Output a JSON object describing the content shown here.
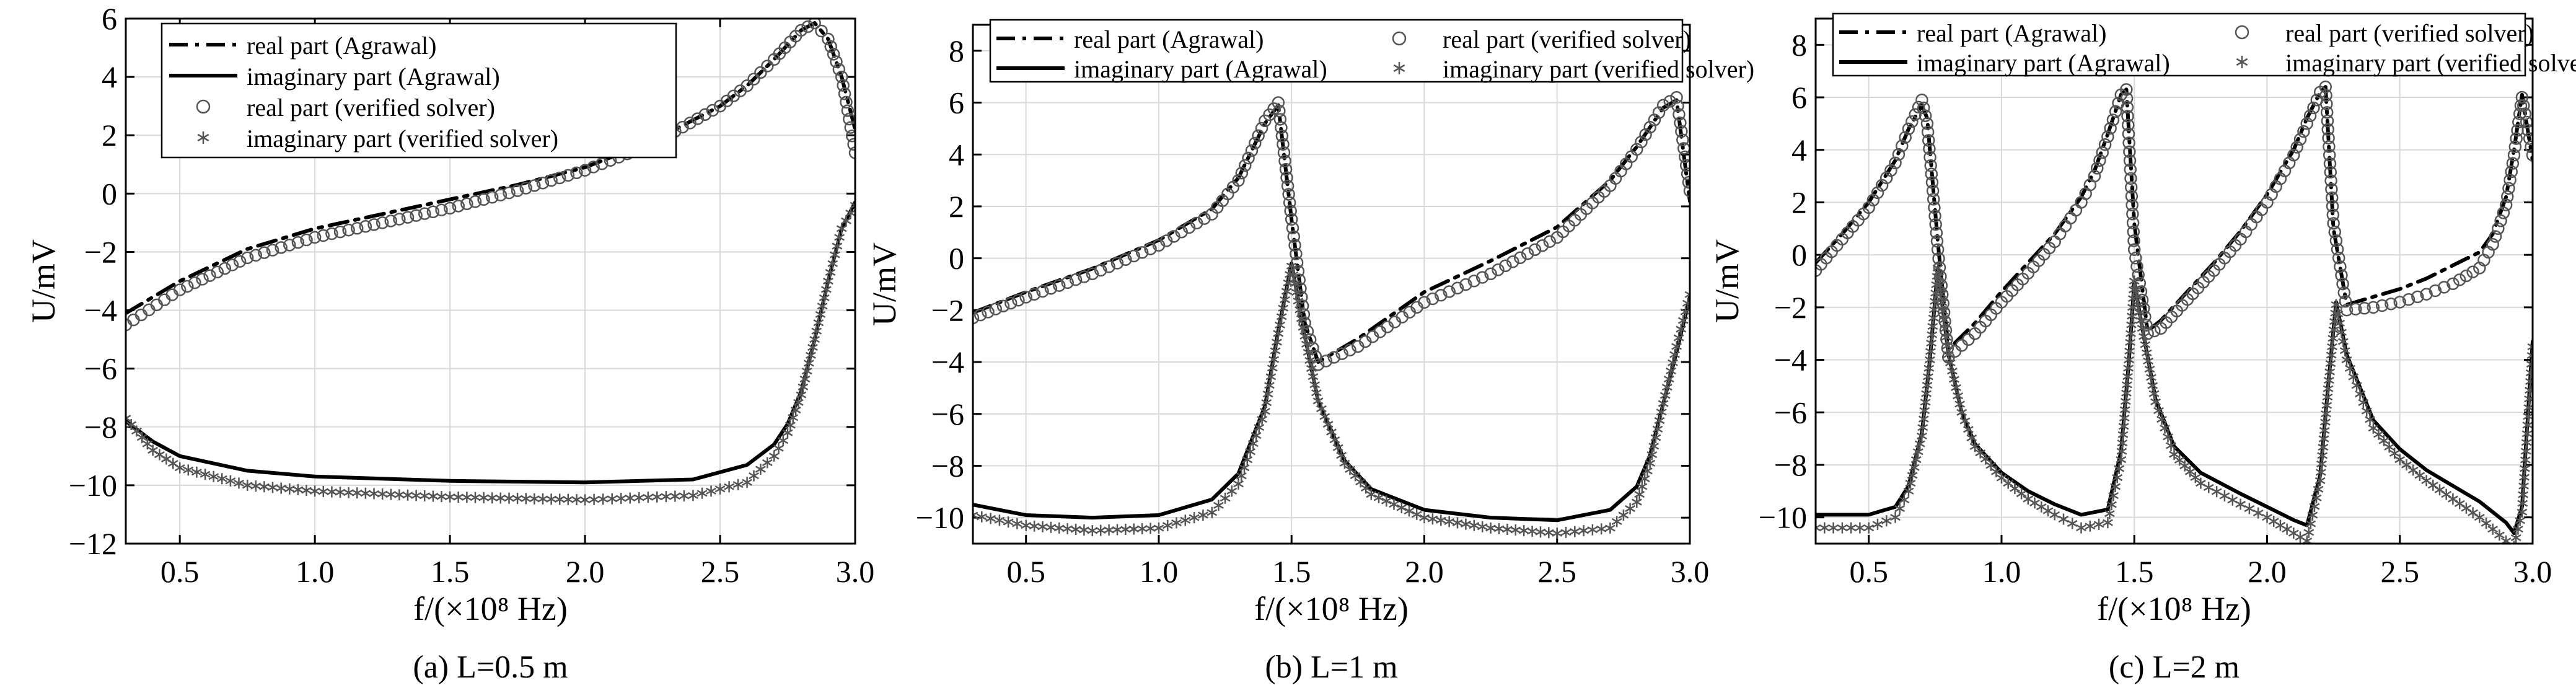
{
  "chart_data": [
    {
      "type": "line",
      "caption": "(a) L=0.5 m",
      "xlabel": "f/(×10⁸ Hz)",
      "ylabel": "U/mV",
      "xlim": [
        0.3,
        3.0
      ],
      "ylim": [
        -12,
        6
      ],
      "xticks": [
        "0.5",
        "1.0",
        "1.5",
        "2.0",
        "2.5",
        "3.0"
      ],
      "yticks": [
        "-12",
        "-10",
        "-8",
        "-6",
        "-4",
        "-2",
        "0",
        "2",
        "4",
        "6"
      ],
      "grid": true,
      "legend_layout": "one-column, top-left",
      "series": [
        {
          "name": "real part (Agrawal)",
          "style": "dashdot",
          "x": [
            0.3,
            0.5,
            0.75,
            1.0,
            1.25,
            1.5,
            1.75,
            2.0,
            2.25,
            2.5,
            2.6,
            2.7,
            2.8,
            2.85,
            2.9,
            2.95,
            3.0
          ],
          "y": [
            -4.1,
            -3.0,
            -1.9,
            -1.2,
            -0.7,
            -0.2,
            0.3,
            0.9,
            1.8,
            3.0,
            3.7,
            4.6,
            5.6,
            5.85,
            5.3,
            4.0,
            2.2
          ]
        },
        {
          "name": "imaginary part (Agrawal)",
          "style": "solid",
          "x": [
            0.3,
            0.4,
            0.5,
            0.75,
            1.0,
            1.5,
            2.0,
            2.4,
            2.6,
            2.7,
            2.75,
            2.8,
            2.85,
            2.9,
            2.95,
            3.0
          ],
          "y": [
            -7.8,
            -8.5,
            -9.0,
            -9.5,
            -9.7,
            -9.85,
            -9.9,
            -9.8,
            -9.3,
            -8.6,
            -7.9,
            -6.8,
            -5.0,
            -3.0,
            -1.2,
            -0.3
          ]
        },
        {
          "name": "real part (verified solver)",
          "style": "circle",
          "x": [
            0.3,
            0.5,
            0.75,
            1.0,
            1.25,
            1.5,
            1.75,
            2.0,
            2.25,
            2.5,
            2.6,
            2.7,
            2.8,
            2.85,
            2.9,
            2.95,
            3.0
          ],
          "y": [
            -4.5,
            -3.3,
            -2.2,
            -1.5,
            -1.0,
            -0.5,
            0.1,
            0.8,
            1.7,
            3.0,
            3.7,
            4.6,
            5.6,
            5.85,
            5.3,
            4.0,
            1.4
          ]
        },
        {
          "name": "imaginary part (verified solver)",
          "style": "star",
          "x": [
            0.3,
            0.4,
            0.5,
            0.75,
            1.0,
            1.5,
            2.0,
            2.4,
            2.6,
            2.7,
            2.75,
            2.8,
            2.85,
            2.9,
            2.95,
            3.0
          ],
          "y": [
            -7.7,
            -8.8,
            -9.4,
            -10.0,
            -10.2,
            -10.4,
            -10.5,
            -10.35,
            -9.9,
            -9.0,
            -8.2,
            -6.9,
            -5.0,
            -3.0,
            -1.2,
            -0.4
          ]
        }
      ]
    },
    {
      "type": "line",
      "caption": "(b) L=1 m",
      "xlabel": "f/(×10⁸ Hz)",
      "ylabel": "U/mV",
      "xlim": [
        0.3,
        3.0
      ],
      "ylim": [
        -11,
        9
      ],
      "xticks": [
        "0.5",
        "1.0",
        "1.5",
        "2.0",
        "2.5",
        "3.0"
      ],
      "yticks": [
        "-10",
        "-8",
        "-6",
        "-4",
        "-2",
        "0",
        "2",
        "4",
        "6",
        "8"
      ],
      "grid": true,
      "legend_layout": "two-column, top",
      "series": [
        {
          "name": "real part (Agrawal)",
          "style": "dashdot",
          "x": [
            0.3,
            0.5,
            0.75,
            1.0,
            1.2,
            1.3,
            1.4,
            1.45,
            1.5,
            1.55,
            1.6,
            1.75,
            2.0,
            2.25,
            2.5,
            2.7,
            2.8,
            2.9,
            2.95,
            3.0
          ],
          "y": [
            -2.1,
            -1.3,
            -0.4,
            0.7,
            1.9,
            3.1,
            5.2,
            5.9,
            1.5,
            -2.5,
            -4.0,
            -3.1,
            -1.3,
            -0.1,
            1.2,
            3.0,
            4.3,
            5.8,
            6.1,
            2.2
          ]
        },
        {
          "name": "imaginary part (Agrawal)",
          "style": "solid",
          "x": [
            0.3,
            0.5,
            0.75,
            1.0,
            1.2,
            1.3,
            1.4,
            1.45,
            1.5,
            1.55,
            1.6,
            1.7,
            1.8,
            2.0,
            2.25,
            2.5,
            2.7,
            2.8,
            2.85,
            2.9,
            2.95,
            3.0
          ],
          "y": [
            -9.5,
            -9.9,
            -10.0,
            -9.9,
            -9.3,
            -8.3,
            -5.7,
            -2.8,
            -0.2,
            -3.0,
            -5.5,
            -7.8,
            -8.9,
            -9.7,
            -10.0,
            -10.1,
            -9.7,
            -8.8,
            -7.6,
            -5.6,
            -3.6,
            -1.5
          ]
        },
        {
          "name": "real part (verified solver)",
          "style": "circle",
          "x": [
            0.3,
            0.5,
            0.75,
            1.0,
            1.2,
            1.3,
            1.4,
            1.45,
            1.5,
            1.55,
            1.6,
            1.75,
            2.0,
            2.25,
            2.5,
            2.7,
            2.8,
            2.9,
            2.95,
            3.0
          ],
          "y": [
            -2.3,
            -1.5,
            -0.6,
            0.5,
            1.7,
            3.0,
            5.3,
            6.0,
            1.5,
            -2.5,
            -4.1,
            -3.4,
            -1.7,
            -0.6,
            0.8,
            2.8,
            4.2,
            5.9,
            6.2,
            2.6
          ]
        },
        {
          "name": "imaginary part (verified solver)",
          "style": "star",
          "x": [
            0.3,
            0.5,
            0.75,
            1.0,
            1.2,
            1.3,
            1.4,
            1.45,
            1.5,
            1.55,
            1.6,
            1.7,
            1.8,
            2.0,
            2.25,
            2.5,
            2.7,
            2.8,
            2.85,
            2.9,
            2.95,
            3.0
          ],
          "y": [
            -9.9,
            -10.3,
            -10.5,
            -10.4,
            -9.8,
            -8.7,
            -5.9,
            -2.9,
            -0.3,
            -3.0,
            -5.5,
            -7.9,
            -9.1,
            -10.0,
            -10.4,
            -10.6,
            -10.4,
            -9.4,
            -7.9,
            -5.6,
            -3.4,
            -1.4
          ]
        }
      ]
    },
    {
      "type": "line",
      "caption": "(c) L=2 m",
      "xlabel": "f/(×10⁸ Hz)",
      "ylabel": "U/mV",
      "xlim": [
        0.3,
        3.0
      ],
      "ylim": [
        -11,
        9
      ],
      "xticks": [
        "0.5",
        "1.0",
        "1.5",
        "2.0",
        "2.5",
        "3.0"
      ],
      "yticks": [
        "-10",
        "-8",
        "-6",
        "-4",
        "-2",
        "0",
        "2",
        "4",
        "6",
        "8"
      ],
      "grid": true,
      "legend_layout": "two-column, top",
      "series": [
        {
          "name": "real part (Agrawal)",
          "style": "dashdot",
          "x": [
            0.3,
            0.4,
            0.5,
            0.6,
            0.65,
            0.7,
            0.72,
            0.76,
            0.8,
            0.9,
            1.0,
            1.1,
            1.2,
            1.3,
            1.35,
            1.4,
            1.45,
            1.47,
            1.5,
            1.55,
            1.6,
            1.7,
            1.8,
            1.9,
            2.0,
            2.1,
            2.15,
            2.2,
            2.22,
            2.25,
            2.3,
            2.4,
            2.5,
            2.6,
            2.7,
            2.8,
            2.85,
            2.9,
            2.93,
            2.96,
            3.0
          ],
          "y": [
            -0.3,
            0.8,
            2.0,
            3.6,
            4.8,
            5.7,
            5.2,
            0.5,
            -3.6,
            -2.6,
            -1.4,
            -0.3,
            0.8,
            2.2,
            3.2,
            4.6,
            6.1,
            6.3,
            1.2,
            -2.9,
            -2.5,
            -1.4,
            -0.3,
            0.9,
            2.3,
            4.0,
            5.2,
            6.2,
            6.4,
            1.0,
            -1.9,
            -1.6,
            -1.3,
            -0.9,
            -0.4,
            0.1,
            0.8,
            2.2,
            4.0,
            6.1,
            3.6
          ]
        },
        {
          "name": "imaginary part (Agrawal)",
          "style": "solid",
          "x": [
            0.3,
            0.5,
            0.6,
            0.65,
            0.7,
            0.73,
            0.76,
            0.8,
            0.85,
            0.9,
            1.0,
            1.1,
            1.2,
            1.3,
            1.4,
            1.45,
            1.48,
            1.5,
            1.53,
            1.58,
            1.65,
            1.75,
            1.9,
            2.0,
            2.1,
            2.15,
            2.2,
            2.23,
            2.26,
            2.3,
            2.4,
            2.5,
            2.6,
            2.7,
            2.8,
            2.9,
            2.93,
            2.96,
            3.0
          ],
          "y": [
            -9.9,
            -9.9,
            -9.6,
            -8.8,
            -6.8,
            -4.0,
            -0.5,
            -3.8,
            -6.0,
            -7.2,
            -8.3,
            -9.0,
            -9.5,
            -9.9,
            -9.7,
            -7.5,
            -4.0,
            -1.0,
            -2.8,
            -5.5,
            -7.3,
            -8.3,
            -9.1,
            -9.6,
            -10.1,
            -10.3,
            -8.4,
            -5.0,
            -1.8,
            -3.8,
            -6.3,
            -7.4,
            -8.2,
            -8.8,
            -9.4,
            -10.2,
            -10.6,
            -9.6,
            -3.3
          ]
        },
        {
          "name": "real part (verified solver)",
          "style": "circle",
          "x": [
            0.3,
            0.4,
            0.5,
            0.6,
            0.65,
            0.7,
            0.72,
            0.76,
            0.8,
            0.9,
            1.0,
            1.1,
            1.2,
            1.3,
            1.35,
            1.4,
            1.45,
            1.47,
            1.5,
            1.55,
            1.6,
            1.7,
            1.8,
            1.9,
            2.0,
            2.1,
            2.15,
            2.2,
            2.22,
            2.25,
            2.3,
            2.4,
            2.5,
            2.6,
            2.7,
            2.8,
            2.85,
            2.9,
            2.93,
            2.96,
            3.0
          ],
          "y": [
            -0.6,
            0.6,
            1.8,
            3.5,
            4.8,
            5.9,
            5.0,
            0.2,
            -3.9,
            -3.0,
            -1.8,
            -0.7,
            0.5,
            2.0,
            3.0,
            4.5,
            6.1,
            6.3,
            0.2,
            -3.0,
            -2.8,
            -1.7,
            -0.6,
            0.6,
            2.0,
            3.8,
            5.0,
            6.2,
            6.4,
            1.2,
            -2.1,
            -2.0,
            -1.8,
            -1.5,
            -1.1,
            -0.5,
            0.4,
            1.9,
            3.8,
            6.0,
            3.8
          ]
        },
        {
          "name": "imaginary part (verified solver)",
          "style": "star",
          "x": [
            0.3,
            0.5,
            0.6,
            0.65,
            0.7,
            0.73,
            0.76,
            0.8,
            0.85,
            0.9,
            1.0,
            1.1,
            1.2,
            1.3,
            1.4,
            1.45,
            1.48,
            1.5,
            1.53,
            1.58,
            1.65,
            1.75,
            1.9,
            2.0,
            2.1,
            2.15,
            2.2,
            2.23,
            2.26,
            2.3,
            2.4,
            2.5,
            2.6,
            2.7,
            2.8,
            2.9,
            2.93,
            2.96,
            3.0
          ],
          "y": [
            -10.4,
            -10.4,
            -10.0,
            -9.0,
            -6.9,
            -4.0,
            -0.5,
            -3.8,
            -6.0,
            -7.3,
            -8.5,
            -9.3,
            -9.9,
            -10.4,
            -10.2,
            -7.8,
            -4.0,
            -1.0,
            -2.8,
            -5.6,
            -7.6,
            -8.7,
            -9.5,
            -10.0,
            -10.6,
            -10.9,
            -8.6,
            -5.1,
            -1.9,
            -4.0,
            -6.6,
            -7.8,
            -8.6,
            -9.3,
            -10.0,
            -10.9,
            -11.1,
            -9.8,
            -3.5
          ]
        }
      ]
    }
  ]
}
